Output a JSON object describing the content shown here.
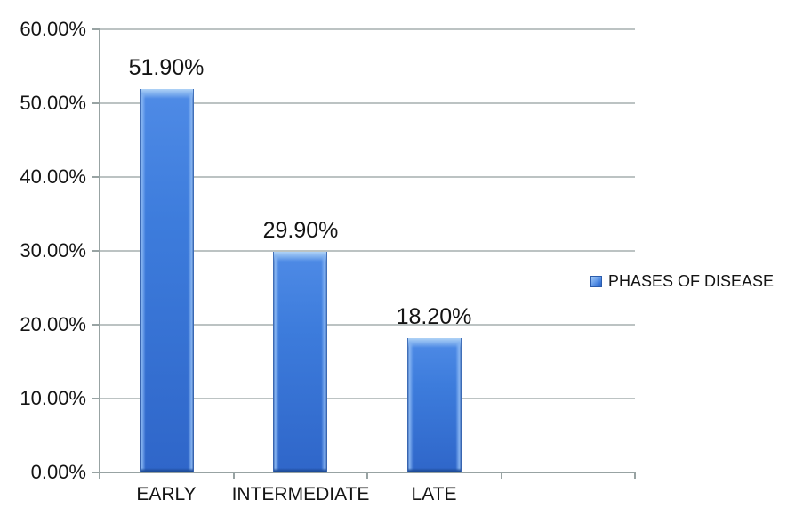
{
  "chart_data": {
    "type": "bar",
    "title": "",
    "categories": [
      "EARLY",
      "INTERMEDIATE",
      "LATE"
    ],
    "values": [
      51.9,
      29.9,
      18.2
    ],
    "data_labels": [
      "51.90%",
      "29.90%",
      "18.20%"
    ],
    "series": [
      {
        "name": "PHASES OF DISEASE",
        "values": [
          51.9,
          29.9,
          18.2
        ]
      }
    ],
    "series_name": "PHASES OF DISEASE",
    "xlabel": "",
    "ylabel": "",
    "ylim": [
      0,
      60
    ],
    "ytick_step": 10,
    "ytick_labels": [
      "60.00%",
      "50.00%",
      "40.00%",
      "30.00%",
      "20.00%",
      "10.00%",
      "0.00%"
    ],
    "grid": true,
    "legend_position": "right-middle",
    "category_slots": 4,
    "colors": {
      "bar": "#3B78DA",
      "bar_highlight": "#AFD2F6",
      "bar_shadow": "#1D4B97",
      "gridline": "#BCC3C3",
      "axis": "#98A3A3",
      "text": "#141414"
    }
  }
}
